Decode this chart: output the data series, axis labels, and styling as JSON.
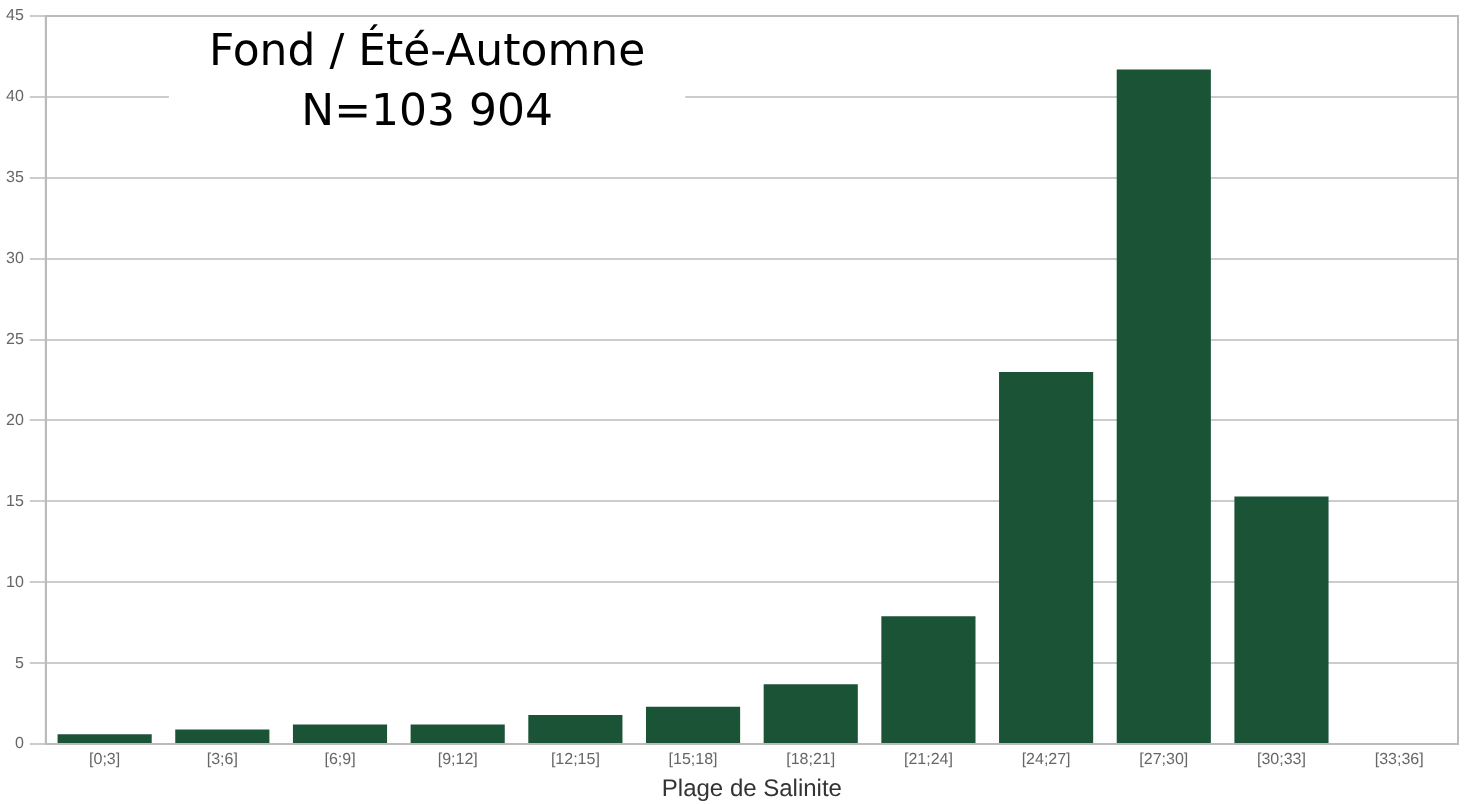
{
  "chart_data": {
    "type": "bar",
    "title": "Fond / Été-Automne",
    "subtitle": "N=103 904",
    "xlabel": "Plage de Salinite",
    "categories": [
      "[0;3]",
      "[3;6]",
      "[6;9]",
      "[9;12]",
      "[12;15]",
      "[15;18]",
      "[18;21]",
      "[21;24]",
      "[24;27]",
      "[27;30]",
      "[30;33]",
      "[33;36]"
    ],
    "values": [
      0.6,
      0.9,
      1.2,
      1.2,
      1.8,
      2.3,
      3.7,
      7.9,
      23.0,
      41.7,
      15.3,
      0
    ],
    "color": "#1b5337",
    "ylim": [
      0,
      45
    ],
    "yticks": [
      0,
      5,
      10,
      15,
      20,
      25,
      30,
      35,
      40,
      45
    ],
    "grid": "y",
    "legend": false
  }
}
